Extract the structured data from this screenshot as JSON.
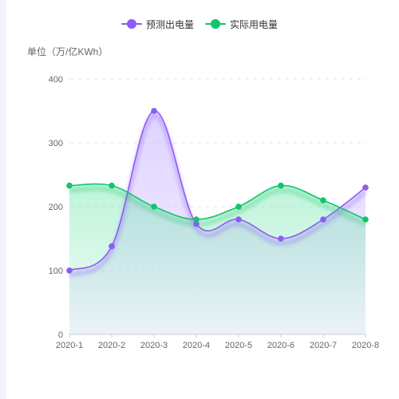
{
  "chart_data": {
    "type": "line",
    "title": "",
    "ylabel": "单位（万/亿KWh）",
    "xlabel": "",
    "categories": [
      "2020-1",
      "2020-2",
      "2020-3",
      "2020-4",
      "2020-5",
      "2020-6",
      "2020-7",
      "2020-8"
    ],
    "ylim": [
      0,
      400
    ],
    "yticks": [
      0,
      100,
      200,
      300,
      400
    ],
    "grid": true,
    "smooth": true,
    "area_fill": true,
    "legend_position": "top-center",
    "series": [
      {
        "name": "预测出电量",
        "color": "#8b5cf6",
        "values": [
          100,
          138,
          350,
          173,
          180,
          150,
          180,
          230
        ]
      },
      {
        "name": "实际用电量",
        "color": "#10c56a",
        "values": [
          233,
          233,
          200,
          180,
          200,
          233,
          210,
          180
        ]
      }
    ]
  }
}
